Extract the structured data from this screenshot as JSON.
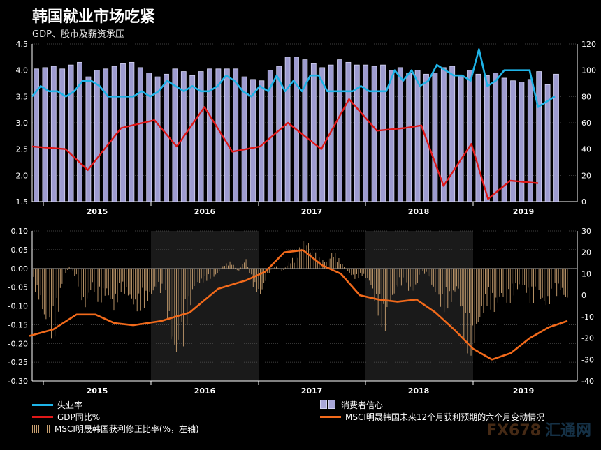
{
  "title": "韩国就业市场吃紧",
  "subtitle": "GDP、股市及薪资承压",
  "colors": {
    "unemployment": "#1eb4e8",
    "gdp": "#e01818",
    "confidence_fill": "#9e9cd0",
    "confidence_stroke": "#d4d4f2",
    "revision": "#c9a070",
    "earnings": "#f26a1b",
    "shade": "#1a1a1a"
  },
  "legend": {
    "unemployment": "失业率",
    "gdp": "GDP同比%",
    "revision": "MSCI明晟韩国获利修正比率(%，左轴)",
    "confidence": "消费者信心",
    "earnings": "MSCI明晟韩国未来12个月获利预期的六个月变动情况"
  },
  "watermark": {
    "part1": "FX678",
    "part2": "汇通网"
  },
  "chart_data": [
    {
      "type": "bar",
      "x_labels": [
        "2015",
        "2016",
        "2017",
        "2018",
        "2019"
      ],
      "left_axis": {
        "ylim": [
          1.5,
          4.5
        ],
        "ticks": [
          "1.5",
          "2.0",
          "2.5",
          "3.0",
          "3.5",
          "4.0",
          "4.5"
        ]
      },
      "right_axis": {
        "ylim": [
          0,
          120
        ],
        "ticks": [
          "0",
          "20",
          "40",
          "60",
          "80",
          "100",
          "120"
        ]
      },
      "series": [
        {
          "name": "消费者信心",
          "axis": "right",
          "type": "bar",
          "values": [
            101,
            102,
            103,
            101,
            104,
            106,
            95,
            100,
            101,
            103,
            105,
            106,
            102,
            98,
            95,
            97,
            101,
            99,
            96,
            99,
            101,
            101,
            101,
            101,
            95,
            93,
            92,
            100,
            103,
            110,
            110,
            108,
            105,
            102,
            104,
            108,
            106,
            104,
            104,
            103,
            104,
            100,
            102,
            98,
            100,
            97,
            98,
            102,
            103,
            96,
            100,
            97,
            96,
            98,
            94,
            92,
            91,
            93,
            99,
            89,
            97
          ]
        },
        {
          "name": "失业率",
          "axis": "left",
          "type": "line",
          "values": [
            3.5,
            3.7,
            3.6,
            3.6,
            3.5,
            3.6,
            3.8,
            3.8,
            3.7,
            3.5,
            3.5,
            3.5,
            3.5,
            3.6,
            3.5,
            3.6,
            3.8,
            3.7,
            3.6,
            3.7,
            3.6,
            3.6,
            3.7,
            3.9,
            3.8,
            3.6,
            3.5,
            3.7,
            3.6,
            3.9,
            3.6,
            3.8,
            3.6,
            3.9,
            3.9,
            3.6,
            3.6,
            3.6,
            3.6,
            3.7,
            3.6,
            3.6,
            3.6,
            4.0,
            3.8,
            4.0,
            3.7,
            3.8,
            4.1,
            4.0,
            3.9,
            3.9,
            3.8,
            4.4,
            3.7,
            3.8,
            4.0,
            4.0,
            4.0,
            4.0,
            3.3,
            3.4,
            3.5
          ]
        },
        {
          "name": "GDP同比%",
          "axis": "left",
          "type": "line",
          "points": [
            [
              0,
              2.55
            ],
            [
              6,
              2.5
            ],
            [
              10,
              2.1
            ],
            [
              16,
              2.9
            ],
            [
              22,
              3.05
            ],
            [
              26,
              2.55
            ],
            [
              31,
              3.3
            ],
            [
              36,
              2.45
            ],
            [
              41,
              2.55
            ],
            [
              46,
              3.0
            ],
            [
              52,
              2.5
            ],
            [
              57,
              3.45
            ],
            [
              62,
              2.85
            ],
            [
              67,
              2.9
            ],
            [
              70,
              2.95
            ],
            [
              74,
              1.8
            ],
            [
              79,
              2.6
            ],
            [
              82,
              1.55
            ],
            [
              86,
              1.9
            ],
            [
              91,
              1.85
            ]
          ]
        }
      ]
    },
    {
      "type": "bar",
      "x_labels": [
        "2015",
        "2016",
        "2017",
        "2018",
        "2019"
      ],
      "left_axis": {
        "ylim": [
          -0.3,
          0.1
        ],
        "ticks": [
          "-0.30",
          "-0.25",
          "-0.20",
          "-0.15",
          "-0.10",
          "-0.05",
          "0.00",
          "0.05",
          "0.10"
        ]
      },
      "right_axis": {
        "ylim": [
          -40,
          30
        ],
        "ticks": [
          "-40",
          "-30",
          "-20",
          "-10",
          "0",
          "10",
          "20",
          "30"
        ]
      },
      "series": [
        {
          "name": "MSCI明晟韩国获利修正比率(%，左轴)",
          "axis": "left",
          "type": "bar",
          "values": [
            -0.05,
            -0.1,
            -0.2,
            -0.18,
            -0.03,
            0.01,
            -0.04,
            -0.12,
            -0.05,
            -0.1,
            -0.07,
            -0.12,
            -0.06,
            -0.08,
            -0.12,
            -0.11,
            -0.08,
            -0.05,
            -0.1,
            -0.23,
            -0.27,
            -0.15,
            -0.05,
            -0.04,
            -0.03,
            -0.02,
            0.01,
            0.02,
            -0.01,
            0.03,
            -0.05,
            -0.08,
            -0.02,
            0.01,
            -0.01,
            0.02,
            0.04,
            0.09,
            0.06,
            0.03,
            0.02,
            0.05,
            0.02,
            -0.01,
            -0.03,
            -0.02,
            -0.04,
            -0.12,
            -0.18,
            -0.09,
            -0.04,
            -0.06,
            -0.07,
            -0.01,
            -0.02,
            -0.08,
            -0.12,
            -0.1,
            -0.05,
            -0.22,
            -0.24,
            -0.15,
            -0.1,
            -0.12,
            -0.08,
            -0.1,
            -0.06,
            -0.05,
            -0.1,
            -0.08,
            -0.11,
            -0.09,
            -0.06,
            -0.1
          ]
        },
        {
          "name": "MSCI明晟韩国未来12个月获利预期的六个月变动情况",
          "axis": "right",
          "type": "line",
          "points": [
            [
              0,
              -19
            ],
            [
              5,
              -16
            ],
            [
              10,
              -9
            ],
            [
              14,
              -9
            ],
            [
              18,
              -13
            ],
            [
              22,
              -14
            ],
            [
              28,
              -12
            ],
            [
              34,
              -8
            ],
            [
              40,
              3
            ],
            [
              46,
              7
            ],
            [
              50,
              11
            ],
            [
              54,
              20
            ],
            [
              58,
              21
            ],
            [
              62,
              14
            ],
            [
              66,
              10
            ],
            [
              70,
              0
            ],
            [
              74,
              -2
            ],
            [
              78,
              -3
            ],
            [
              82,
              -2
            ],
            [
              86,
              -8
            ],
            [
              90,
              -16
            ],
            [
              94,
              -25
            ],
            [
              98,
              -30
            ],
            [
              102,
              -27
            ],
            [
              106,
              -20
            ],
            [
              110,
              -15
            ],
            [
              114,
              -12
            ]
          ]
        }
      ]
    }
  ]
}
